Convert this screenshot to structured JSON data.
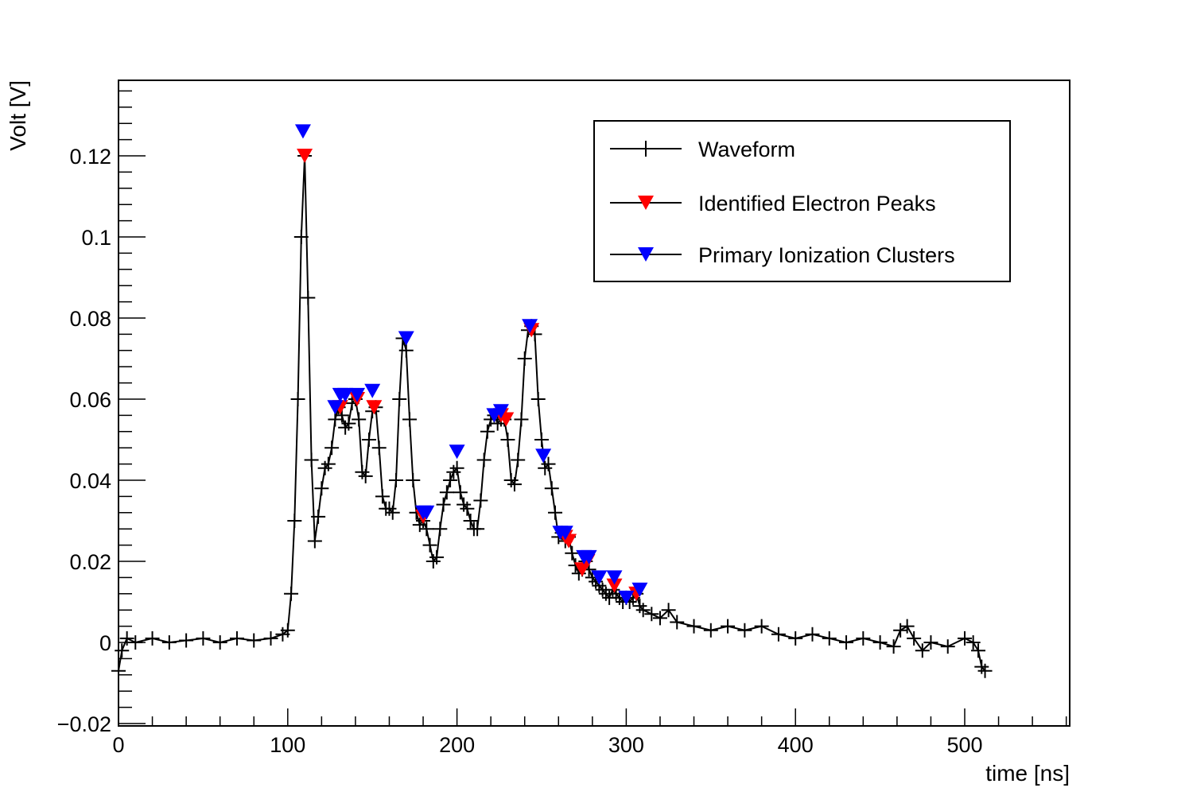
{
  "chart_data": {
    "type": "scatter",
    "title": "",
    "xlabel": "time [ns]",
    "ylabel": "Volt [V]",
    "xlim": [
      0,
      562
    ],
    "ylim": [
      -0.02,
      0.138
    ],
    "xticks": [
      0,
      100,
      200,
      300,
      400,
      500
    ],
    "xtick_labels": [
      "0",
      "100",
      "200",
      "300",
      "400",
      "500"
    ],
    "yticks": [
      -0.02,
      0,
      0.02,
      0.04,
      0.06,
      0.08,
      0.1,
      0.12
    ],
    "ytick_labels": [
      "−0.02",
      "0",
      "0.02",
      "0.04",
      "0.06",
      "0.08",
      "0.1",
      "0.12"
    ],
    "grid": false,
    "legend_position": "top-right",
    "colors": {
      "waveform": "#000000",
      "electron_peaks": "#ff0000",
      "clusters": "#0000ff"
    },
    "series": [
      {
        "name": "Waveform",
        "style": "line-with-markers",
        "marker": "plus",
        "color": "#000000",
        "x": [
          0,
          2,
          5,
          10,
          20,
          30,
          40,
          50,
          60,
          70,
          80,
          90,
          97,
          100,
          102,
          104,
          106,
          108,
          110,
          112,
          114,
          116,
          118,
          120,
          122,
          124,
          126,
          128,
          130,
          132,
          134,
          136,
          138,
          140,
          142,
          144,
          146,
          148,
          150,
          152,
          154,
          156,
          158,
          160,
          162,
          164,
          166,
          168,
          170,
          172,
          174,
          176,
          178,
          180,
          182,
          184,
          186,
          188,
          190,
          192,
          194,
          196,
          198,
          200,
          202,
          204,
          206,
          208,
          210,
          212,
          214,
          216,
          218,
          220,
          222,
          224,
          226,
          228,
          230,
          232,
          234,
          236,
          238,
          240,
          242,
          244,
          246,
          248,
          250,
          252,
          254,
          256,
          258,
          260,
          262,
          264,
          266,
          268,
          270,
          272,
          274,
          276,
          278,
          280,
          282,
          284,
          286,
          288,
          290,
          292,
          294,
          296,
          298,
          300,
          302,
          304,
          306,
          308,
          310,
          315,
          320,
          325,
          330,
          340,
          350,
          360,
          370,
          380,
          390,
          400,
          410,
          420,
          430,
          440,
          450,
          458,
          462,
          466,
          470,
          475,
          480,
          490,
          500,
          505,
          508,
          510,
          512
        ],
        "y": [
          -0.007,
          -0.002,
          0.001,
          0.0,
          0.001,
          0.0,
          0.0005,
          0.001,
          0.0,
          0.001,
          0.0005,
          0.001,
          0.002,
          0.003,
          0.012,
          0.03,
          0.06,
          0.1,
          0.12,
          0.085,
          0.045,
          0.025,
          0.031,
          0.038,
          0.043,
          0.044,
          0.048,
          0.055,
          0.058,
          0.056,
          0.053,
          0.054,
          0.059,
          0.06,
          0.055,
          0.042,
          0.041,
          0.05,
          0.057,
          0.058,
          0.048,
          0.036,
          0.033,
          0.033,
          0.032,
          0.04,
          0.06,
          0.075,
          0.072,
          0.055,
          0.04,
          0.032,
          0.029,
          0.03,
          0.028,
          0.024,
          0.02,
          0.021,
          0.028,
          0.034,
          0.037,
          0.04,
          0.042,
          0.043,
          0.037,
          0.034,
          0.033,
          0.03,
          0.028,
          0.028,
          0.035,
          0.045,
          0.052,
          0.055,
          0.056,
          0.054,
          0.055,
          0.055,
          0.05,
          0.04,
          0.039,
          0.045,
          0.055,
          0.07,
          0.077,
          0.078,
          0.076,
          0.06,
          0.05,
          0.043,
          0.044,
          0.038,
          0.032,
          0.026,
          0.027,
          0.025,
          0.026,
          0.022,
          0.019,
          0.017,
          0.018,
          0.02,
          0.018,
          0.016,
          0.015,
          0.014,
          0.013,
          0.012,
          0.011,
          0.013,
          0.012,
          0.011,
          0.01,
          0.011,
          0.01,
          0.011,
          0.012,
          0.009,
          0.008,
          0.007,
          0.006,
          0.008,
          0.005,
          0.004,
          0.003,
          0.004,
          0.003,
          0.004,
          0.002,
          0.001,
          0.002,
          0.001,
          0.0,
          0.001,
          0.0,
          -0.001,
          0.003,
          0.004,
          0.001,
          -0.002,
          0.0,
          -0.001,
          0.001,
          0.0,
          -0.002,
          -0.006,
          -0.007
        ]
      },
      {
        "name": "Identified Electron Peaks",
        "style": "markers",
        "marker": "triangle-down",
        "color": "#ff0000",
        "x": [
          110,
          131,
          141,
          151,
          180,
          226,
          229,
          244,
          264,
          266,
          274,
          277,
          293,
          306
        ],
        "y": [
          0.12,
          0.058,
          0.06,
          0.058,
          0.031,
          0.056,
          0.055,
          0.077,
          0.026,
          0.025,
          0.018,
          0.02,
          0.014,
          0.012
        ]
      },
      {
        "name": "Primary Ionization Clusters",
        "style": "markers",
        "marker": "triangle-down",
        "color": "#0000ff",
        "x": [
          109,
          128,
          131,
          134,
          141,
          150,
          170,
          180,
          182,
          200,
          222,
          226,
          243,
          251,
          261,
          264,
          275,
          278,
          284,
          293,
          300,
          308
        ],
        "y": [
          0.126,
          0.058,
          0.061,
          0.061,
          0.061,
          0.062,
          0.075,
          0.032,
          0.032,
          0.047,
          0.056,
          0.057,
          0.078,
          0.046,
          0.027,
          0.027,
          0.021,
          0.021,
          0.016,
          0.016,
          0.011,
          0.013
        ]
      }
    ]
  }
}
